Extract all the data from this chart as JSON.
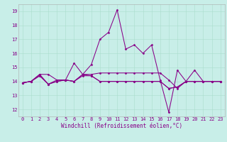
{
  "xlabel": "Windchill (Refroidissement éolien,°C)",
  "background_color": "#c8eee8",
  "line_color": "#880088",
  "xlim": [
    -0.5,
    23.5
  ],
  "ylim": [
    11.5,
    19.5
  ],
  "yticks": [
    12,
    13,
    14,
    15,
    16,
    17,
    18,
    19
  ],
  "xticks": [
    0,
    1,
    2,
    3,
    4,
    5,
    6,
    7,
    8,
    9,
    10,
    11,
    12,
    13,
    14,
    15,
    16,
    17,
    18,
    19,
    20,
    21,
    22,
    23
  ],
  "series": [
    [
      13.9,
      14.0,
      14.5,
      14.5,
      14.1,
      14.1,
      15.3,
      14.5,
      15.2,
      17.0,
      17.5,
      19.1,
      16.3,
      16.6,
      16.0,
      16.6,
      14.1,
      11.8,
      14.8,
      14.0,
      14.0,
      14.0,
      14.0,
      14.0
    ],
    [
      13.9,
      14.0,
      14.5,
      13.8,
      14.1,
      14.1,
      14.0,
      14.5,
      14.5,
      14.6,
      14.6,
      14.6,
      14.6,
      14.6,
      14.6,
      14.6,
      14.6,
      14.1,
      13.5,
      14.0,
      14.8,
      14.0,
      14.0,
      14.0
    ],
    [
      13.9,
      14.0,
      14.4,
      13.8,
      14.0,
      14.1,
      14.0,
      14.5,
      14.4,
      14.0,
      14.0,
      14.0,
      14.0,
      14.0,
      14.0,
      14.0,
      14.0,
      13.5,
      13.6,
      14.0,
      14.0,
      14.0,
      14.0,
      14.0
    ],
    [
      13.9,
      14.0,
      14.4,
      13.8,
      14.0,
      14.1,
      14.0,
      14.4,
      14.4,
      14.0,
      14.0,
      14.0,
      14.0,
      14.0,
      14.0,
      14.0,
      14.0,
      13.5,
      13.6,
      14.0,
      14.0,
      14.0,
      14.0,
      14.0
    ]
  ],
  "grid_color": "#aaddcc",
  "tick_fontsize": 5,
  "xlabel_fontsize": 5.5
}
